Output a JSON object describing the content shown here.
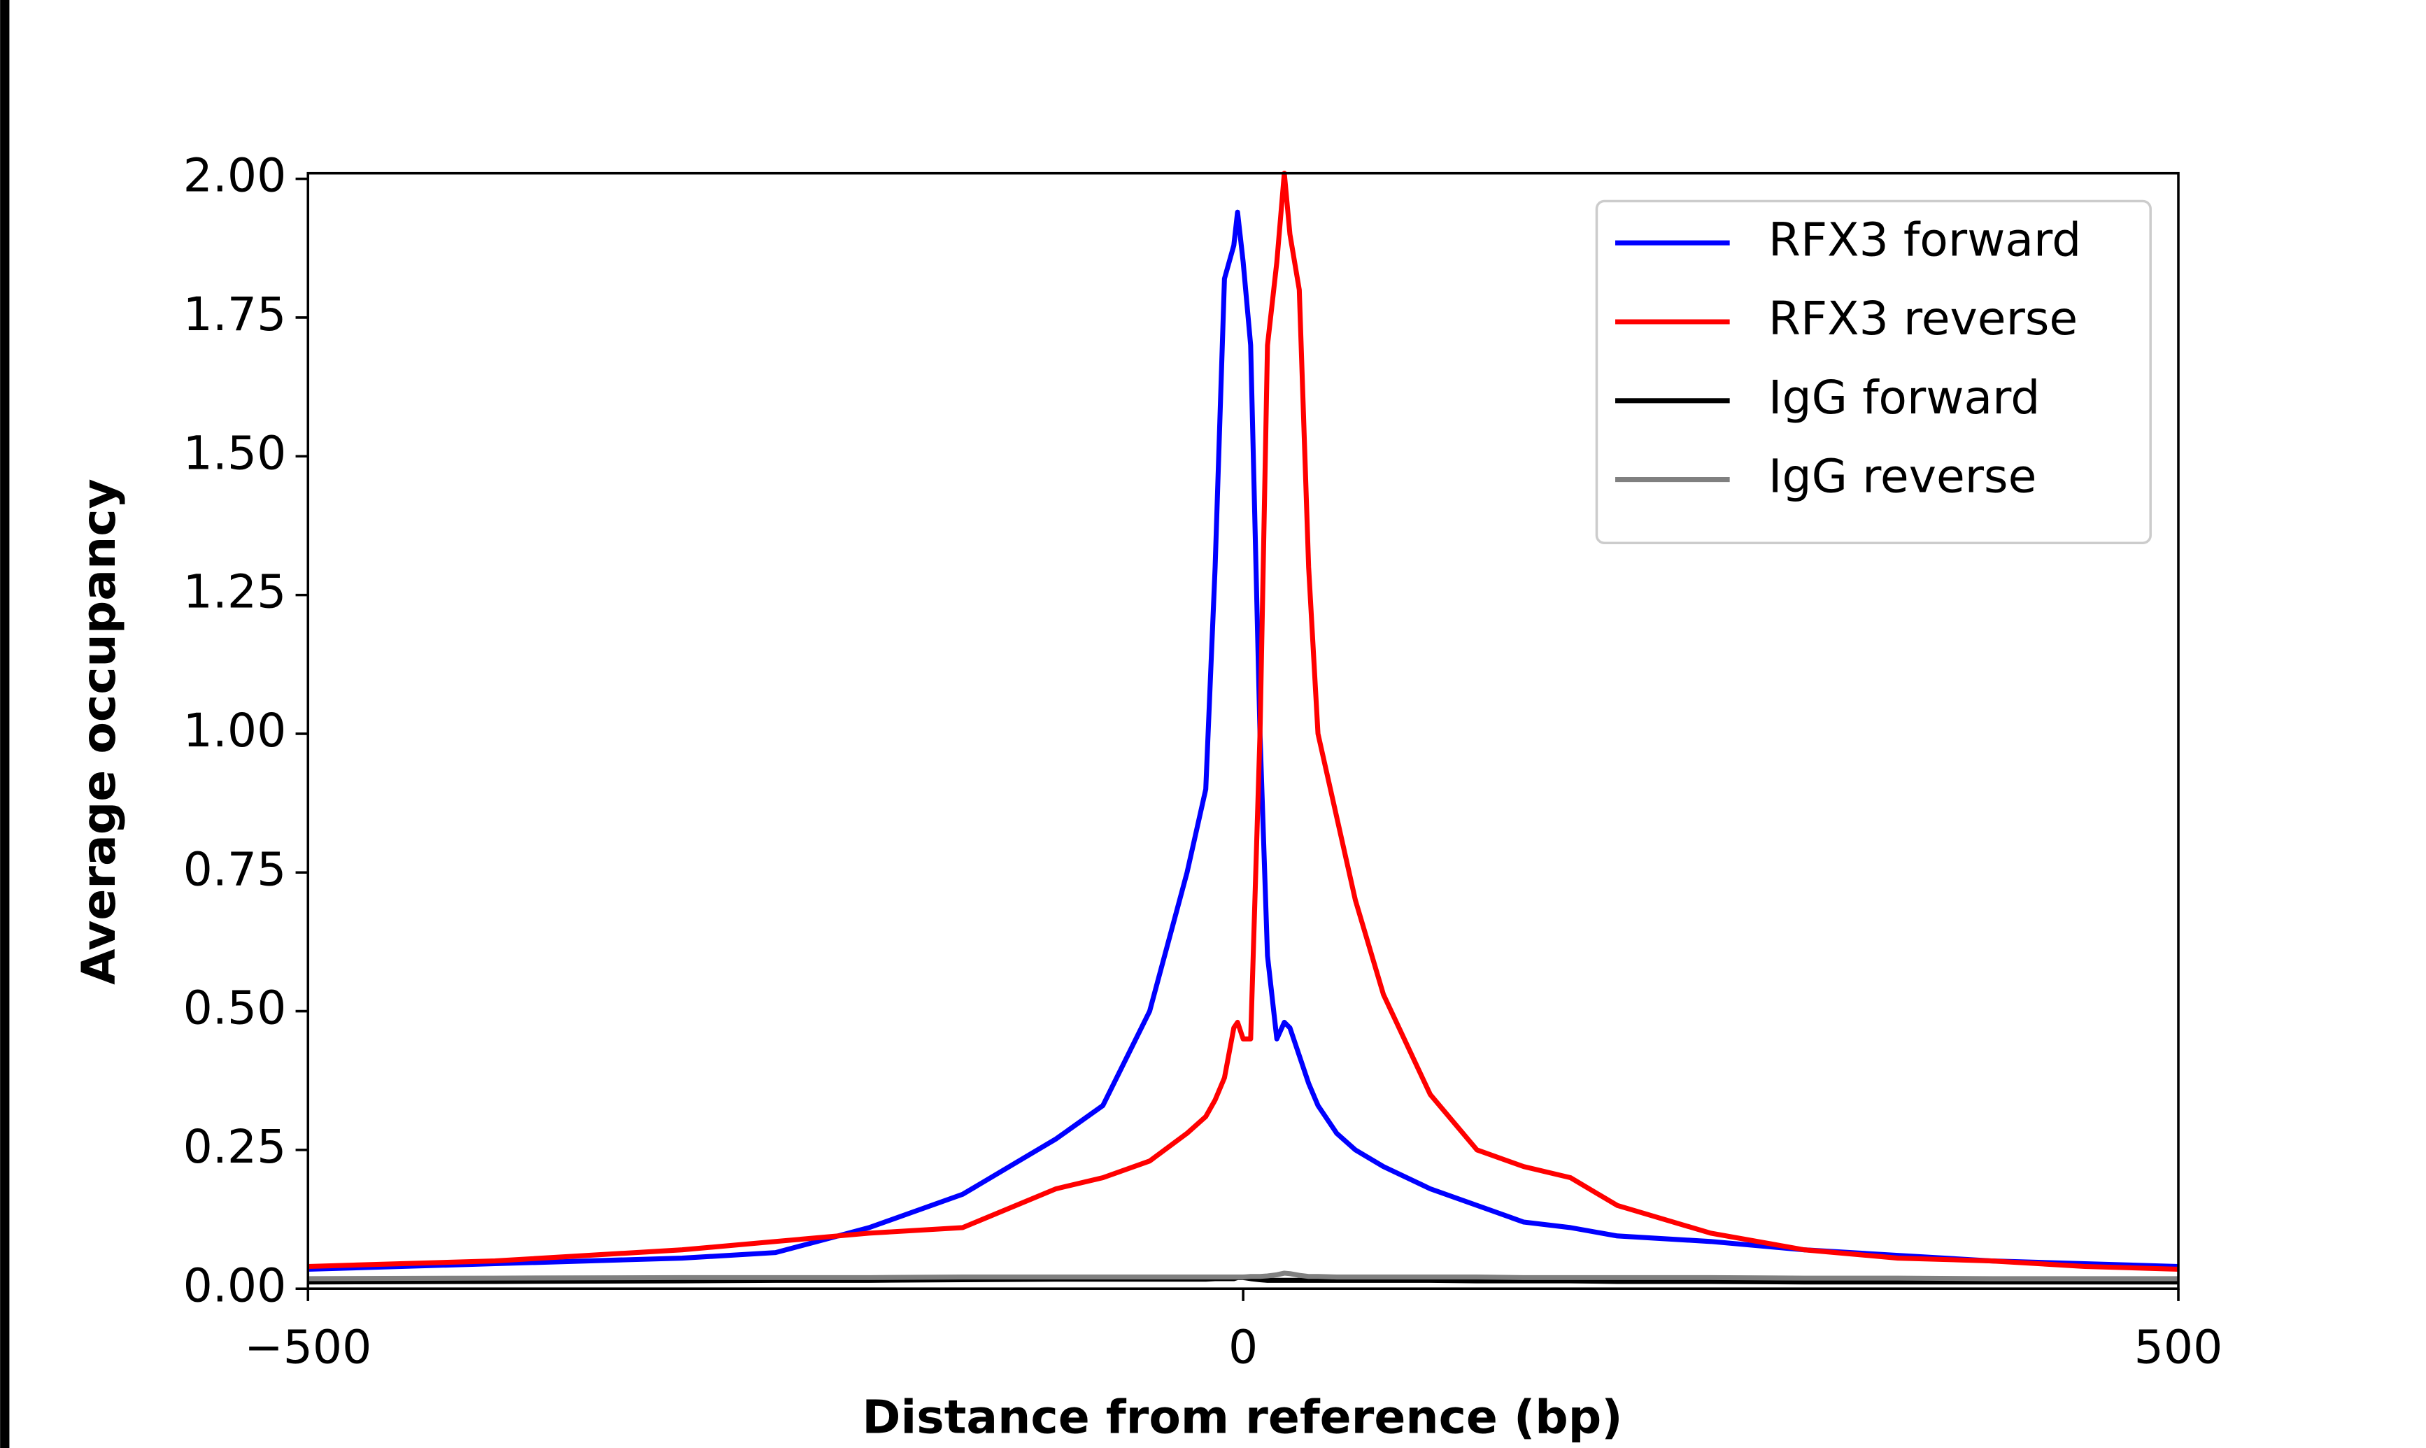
{
  "chart_data": {
    "type": "line",
    "xlabel": "Distance from reference (bp)",
    "ylabel": "Average occupancy",
    "x": [
      -500,
      -400,
      -300,
      -250,
      -200,
      -150,
      -100,
      -75,
      -50,
      -30,
      -20,
      -15,
      -10,
      -5,
      -3,
      0,
      4,
      9,
      13,
      18,
      22,
      25,
      30,
      35,
      40,
      50,
      60,
      75,
      100,
      125,
      150,
      175,
      200,
      250,
      300,
      350,
      400,
      450,
      500
    ],
    "series": [
      {
        "name": "RFX3 forward",
        "color": "#0000ff",
        "values": [
          0.035,
          0.045,
          0.055,
          0.065,
          0.11,
          0.17,
          0.27,
          0.33,
          0.5,
          0.75,
          0.9,
          1.3,
          1.82,
          1.88,
          1.94,
          1.85,
          1.7,
          1.0,
          0.6,
          0.45,
          0.48,
          0.47,
          0.42,
          0.37,
          0.33,
          0.28,
          0.25,
          0.22,
          0.18,
          0.15,
          0.12,
          0.11,
          0.095,
          0.085,
          0.07,
          0.06,
          0.05,
          0.045,
          0.04
        ]
      },
      {
        "name": "RFX3 reverse",
        "color": "#ff0000",
        "values": [
          0.04,
          0.05,
          0.07,
          0.085,
          0.1,
          0.11,
          0.18,
          0.2,
          0.23,
          0.28,
          0.31,
          0.34,
          0.38,
          0.47,
          0.48,
          0.45,
          0.45,
          1.0,
          1.7,
          1.85,
          2.01,
          1.9,
          1.8,
          1.3,
          1.0,
          0.85,
          0.7,
          0.53,
          0.35,
          0.25,
          0.22,
          0.2,
          0.15,
          0.1,
          0.07,
          0.055,
          0.05,
          0.04,
          0.035
        ]
      },
      {
        "name": "IgG forward",
        "color": "#000000",
        "values": [
          0.012,
          0.013,
          0.014,
          0.015,
          0.015,
          0.016,
          0.017,
          0.017,
          0.017,
          0.017,
          0.017,
          0.018,
          0.018,
          0.018,
          0.02,
          0.02,
          0.018,
          0.016,
          0.015,
          0.015,
          0.015,
          0.015,
          0.015,
          0.015,
          0.015,
          0.015,
          0.015,
          0.015,
          0.015,
          0.014,
          0.014,
          0.014,
          0.013,
          0.013,
          0.012,
          0.012,
          0.012,
          0.012,
          0.012
        ]
      },
      {
        "name": "IgG reverse",
        "color": "#808080",
        "values": [
          0.018,
          0.019,
          0.02,
          0.02,
          0.02,
          0.021,
          0.021,
          0.021,
          0.021,
          0.021,
          0.021,
          0.021,
          0.021,
          0.021,
          0.021,
          0.021,
          0.022,
          0.022,
          0.023,
          0.025,
          0.028,
          0.027,
          0.024,
          0.022,
          0.022,
          0.021,
          0.021,
          0.021,
          0.021,
          0.021,
          0.02,
          0.02,
          0.02,
          0.02,
          0.019,
          0.019,
          0.018,
          0.018,
          0.018
        ]
      }
    ],
    "xlim": [
      -500,
      500
    ],
    "ylim": [
      0,
      2.01
    ],
    "xticks": [
      {
        "value": -500,
        "label": "−500"
      },
      0,
      500
    ],
    "yticks": [
      {
        "value": 0,
        "label": "0.00"
      },
      {
        "value": 0.25,
        "label": "0.25"
      },
      {
        "value": 0.5,
        "label": "0.50"
      },
      {
        "value": 0.75,
        "label": "0.75"
      },
      {
        "value": 1,
        "label": "1.00"
      },
      {
        "value": 1.25,
        "label": "1.25"
      },
      {
        "value": 1.5,
        "label": "1.50"
      },
      {
        "value": 1.75,
        "label": "1.75"
      },
      {
        "value": 2,
        "label": "2.00"
      }
    ],
    "legend": "upper right"
  }
}
